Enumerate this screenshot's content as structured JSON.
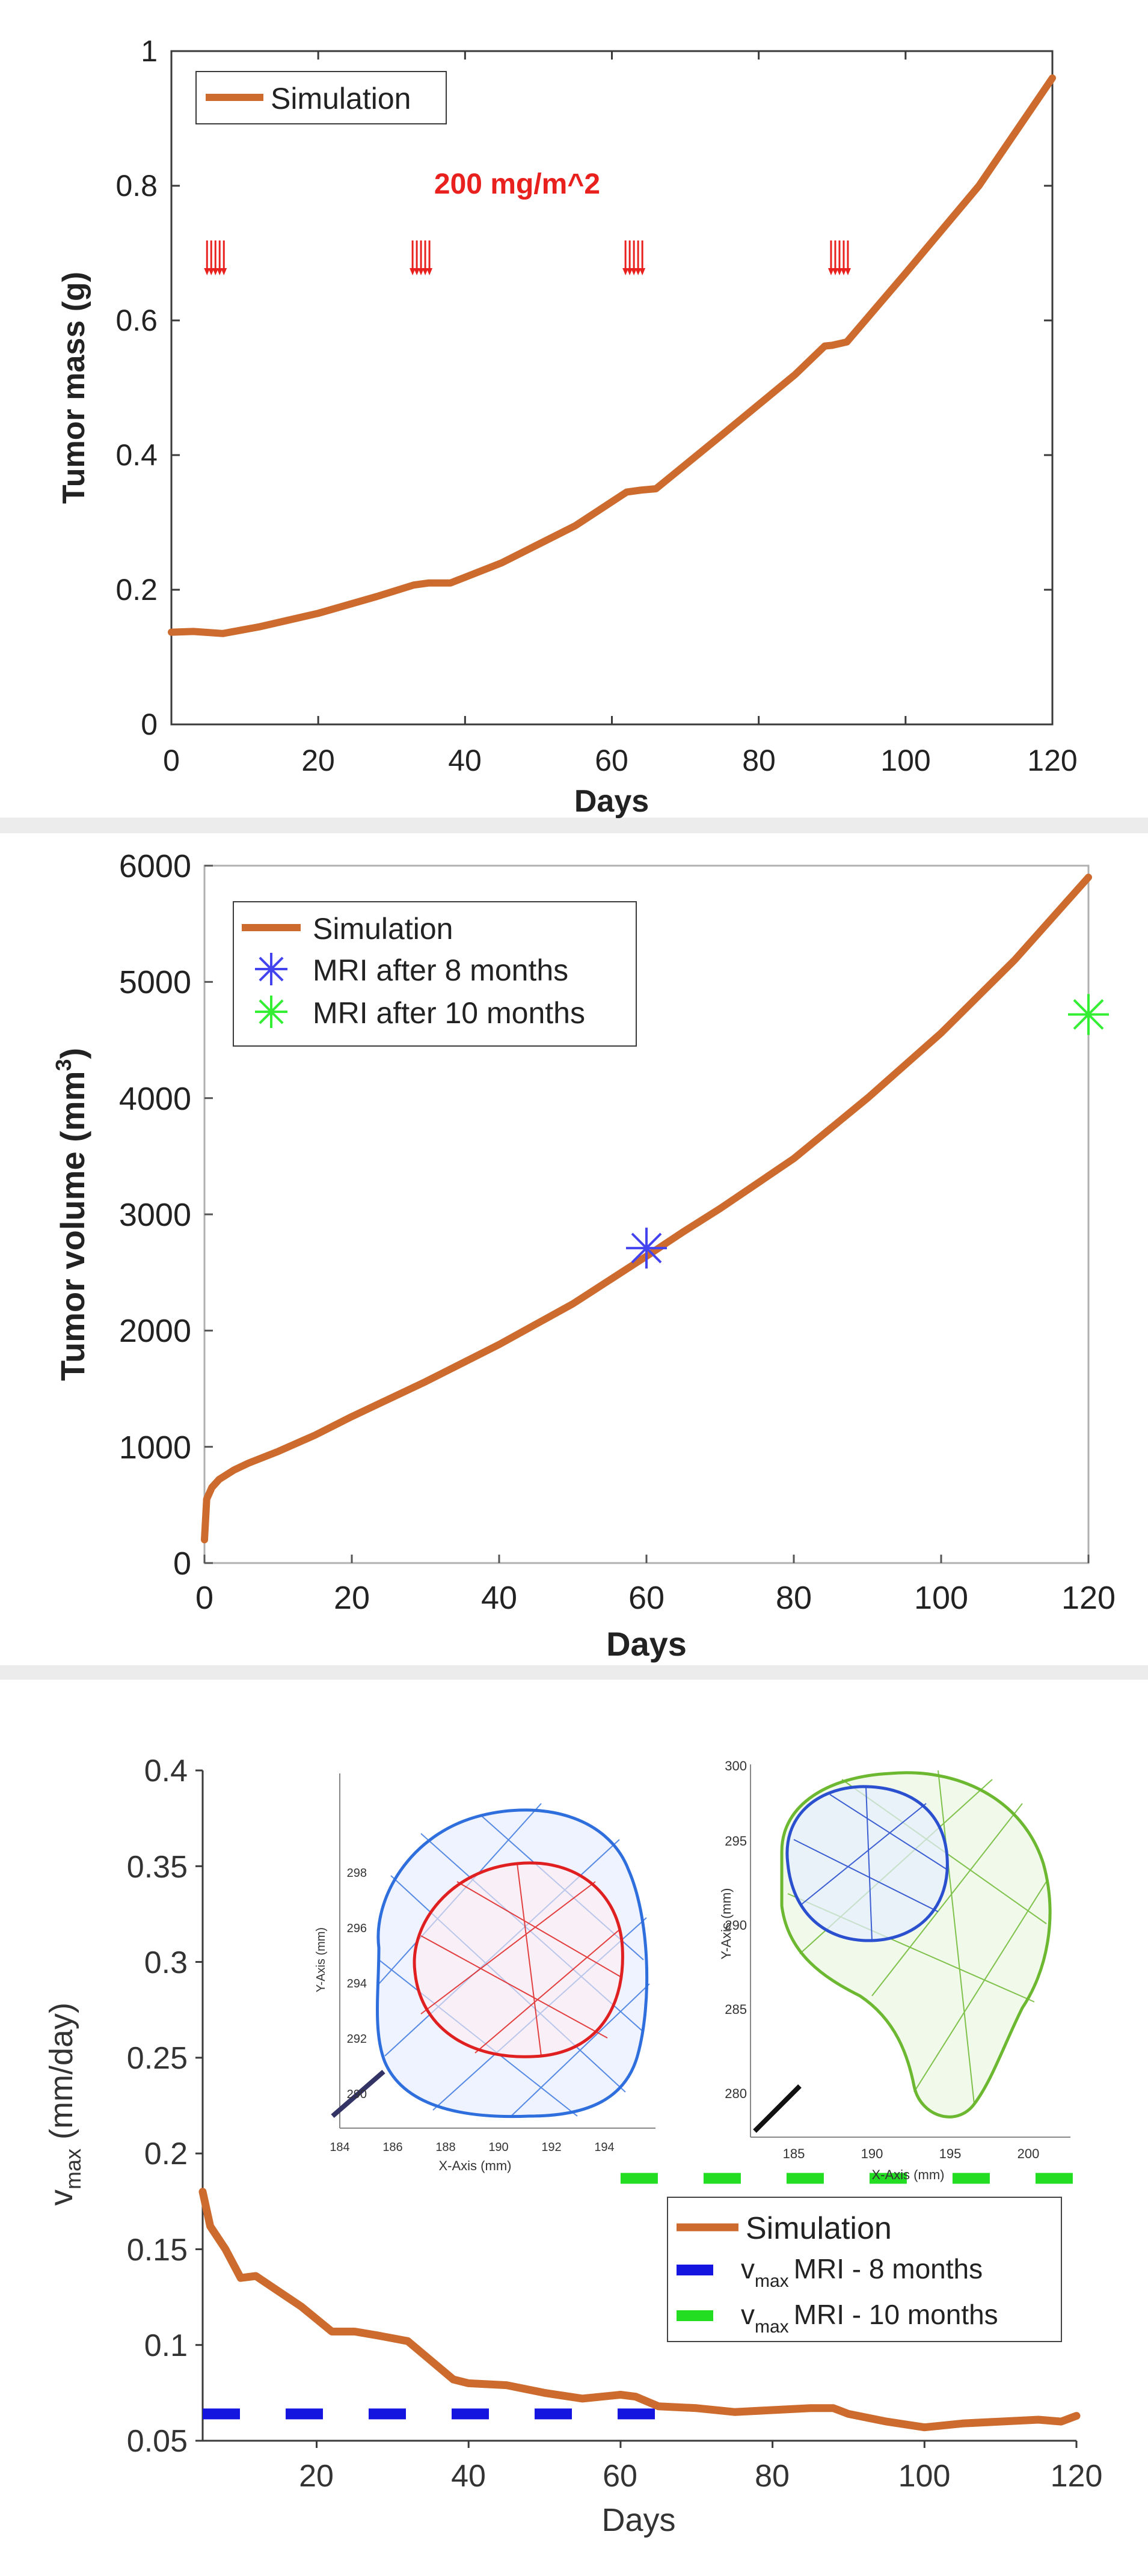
{
  "chart_data": [
    {
      "type": "line",
      "xlabel": "Days",
      "ylabel": "Tumor mass (g)",
      "xlim": [
        0,
        120
      ],
      "ylim": [
        0,
        1
      ],
      "xticks": [
        "0",
        "20",
        "40",
        "60",
        "80",
        "100",
        "120"
      ],
      "yticks": [
        "0",
        "0.2",
        "0.4",
        "0.6",
        "0.8",
        "1"
      ],
      "annotation": "200 mg/m^2",
      "dose_days": [
        6,
        34,
        63,
        91
      ],
      "legend": [
        "Simulation"
      ],
      "series": [
        {
          "name": "Simulation",
          "color": "#cd6b2e",
          "x": [
            0,
            3,
            7,
            12,
            20,
            28,
            33,
            35,
            38,
            45,
            55,
            62,
            64,
            66,
            75,
            85,
            89,
            90,
            92,
            100,
            110,
            120
          ],
          "y": [
            0.137,
            0.138,
            0.135,
            0.145,
            0.165,
            0.19,
            0.207,
            0.21,
            0.21,
            0.24,
            0.295,
            0.345,
            0.348,
            0.35,
            0.43,
            0.52,
            0.562,
            0.563,
            0.568,
            0.67,
            0.8,
            0.96
          ]
        }
      ]
    },
    {
      "type": "line",
      "xlabel": "Days",
      "ylabel": "Tumor volume (mm",
      "ylabel_sup": "3",
      "ylabel_end": ")",
      "xlim": [
        0,
        120
      ],
      "ylim": [
        0,
        6000
      ],
      "xticks": [
        "0",
        "20",
        "40",
        "60",
        "80",
        "100",
        "120"
      ],
      "yticks": [
        "0",
        "1000",
        "2000",
        "3000",
        "4000",
        "5000",
        "6000"
      ],
      "legend": [
        "Simulation",
        "MRI after  8 months",
        "MRI after 10 months"
      ],
      "series": [
        {
          "name": "Simulation",
          "color": "#cd6b2e",
          "x": [
            0,
            0.3,
            1,
            2,
            4,
            6,
            10,
            15,
            20,
            30,
            40,
            50,
            60,
            65,
            70,
            80,
            90,
            100,
            110,
            120
          ],
          "y": [
            200,
            550,
            650,
            720,
            800,
            860,
            960,
            1100,
            1260,
            1560,
            1880,
            2230,
            2640,
            2850,
            3050,
            3480,
            4000,
            4560,
            5190,
            5900
          ]
        }
      ],
      "markers": [
        {
          "name": "MRI after  8 months",
          "color": "#4444ee",
          "x": 60,
          "y": 2710
        },
        {
          "name": "MRI after 10 months",
          "color": "#33ee33",
          "x": 120,
          "y": 4720
        }
      ]
    },
    {
      "type": "line",
      "xlabel": "Days",
      "ylabel": "v",
      "ylabel_sub": "max",
      "ylabel_end": " (mm/day)",
      "xlim": [
        5,
        120
      ],
      "ylim": [
        0.05,
        0.4
      ],
      "xticks": [
        "20",
        "40",
        "60",
        "80",
        "100",
        "120"
      ],
      "yticks": [
        "0.05",
        "0.1",
        "0.15",
        "0.2",
        "0.25",
        "0.3",
        "0.35",
        "0.4"
      ],
      "legend": [
        "Simulation",
        "MRI - 8 months",
        "MRI - 10 months"
      ],
      "legend_prefix": "v",
      "legend_sub": "max",
      "series": [
        {
          "name": "Simulation",
          "color": "#cd6b2e",
          "x": [
            5,
            6,
            8,
            10,
            12,
            15,
            18,
            22,
            25,
            28,
            32,
            35,
            38,
            40,
            45,
            50,
            55,
            60,
            62,
            65,
            70,
            75,
            80,
            85,
            88,
            90,
            95,
            100,
            105,
            110,
            115,
            118,
            120
          ],
          "y": [
            0.18,
            0.162,
            0.15,
            0.135,
            0.136,
            0.128,
            0.12,
            0.107,
            0.107,
            0.105,
            0.102,
            0.092,
            0.082,
            0.08,
            0.079,
            0.075,
            0.072,
            0.074,
            0.073,
            0.068,
            0.067,
            0.065,
            0.066,
            0.067,
            0.067,
            0.064,
            0.06,
            0.057,
            0.059,
            0.06,
            0.061,
            0.06,
            0.063
          ]
        },
        {
          "name": "v_max MRI - 8 months",
          "color": "#1515e0",
          "style": "dashed",
          "x": [
            5,
            65
          ],
          "y": [
            0.064,
            0.064
          ]
        },
        {
          "name": "v_max MRI - 10 months",
          "color": "#22dd22",
          "style": "dashed",
          "x": [
            60,
            120
          ],
          "y": [
            0.187,
            0.187
          ]
        }
      ],
      "insets": [
        {
          "xlabel": "X-Axis (mm)",
          "ylabel": "Y-Axis (mm)",
          "xticks": [
            "184",
            "186",
            "188",
            "190",
            "192",
            "194"
          ],
          "yticks": [
            "290",
            "292",
            "294",
            "296",
            "298"
          ]
        },
        {
          "xlabel": "X-Axis (mm)",
          "ylabel": "Y-Axis (mm)",
          "xticks": [
            "185",
            "190",
            "195",
            "200"
          ],
          "yticks": [
            "280",
            "285",
            "290",
            "295",
            "300"
          ]
        }
      ]
    }
  ]
}
